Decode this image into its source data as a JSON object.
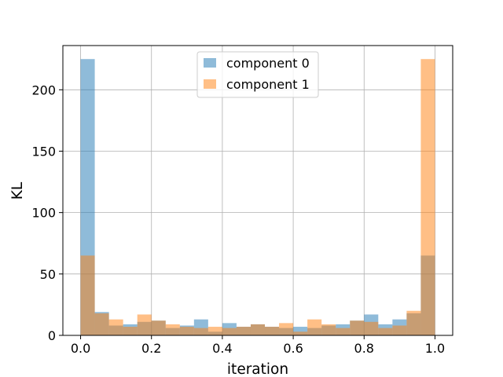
{
  "chart_data": {
    "type": "bar",
    "subtype": "overlaid-histogram",
    "title": "",
    "xlabel": "iteration",
    "ylabel": "KL",
    "xlim": [
      -0.05,
      1.05
    ],
    "ylim": [
      0,
      236
    ],
    "xticks": [
      "0.0",
      "0.2",
      "0.4",
      "0.6",
      "0.8",
      "1.0"
    ],
    "yticks": [
      "0",
      "50",
      "100",
      "150",
      "200"
    ],
    "grid": true,
    "legend": "upper center",
    "bin_edges": [
      0.0,
      0.04,
      0.08,
      0.12,
      0.16,
      0.2,
      0.24,
      0.28,
      0.32,
      0.36,
      0.4,
      0.44,
      0.48,
      0.52,
      0.56,
      0.6,
      0.64,
      0.68,
      0.72,
      0.76,
      0.8,
      0.84,
      0.88,
      0.92,
      0.96,
      1.0
    ],
    "series": [
      {
        "name": "component 0",
        "color": "#1f77b4",
        "alpha": 0.5,
        "values": [
          225,
          19,
          8,
          9,
          11,
          12,
          6,
          8,
          13,
          3,
          10,
          7,
          9,
          7,
          6,
          7,
          6,
          8,
          9,
          12,
          17,
          9,
          13,
          18,
          65
        ]
      },
      {
        "name": "component 1",
        "color": "#ff7f0e",
        "alpha": 0.5,
        "values": [
          65,
          18,
          13,
          7,
          17,
          12,
          9,
          7,
          6,
          7,
          6,
          7,
          9,
          7,
          10,
          3,
          13,
          9,
          6,
          12,
          11,
          6,
          8,
          20,
          225
        ]
      }
    ]
  }
}
